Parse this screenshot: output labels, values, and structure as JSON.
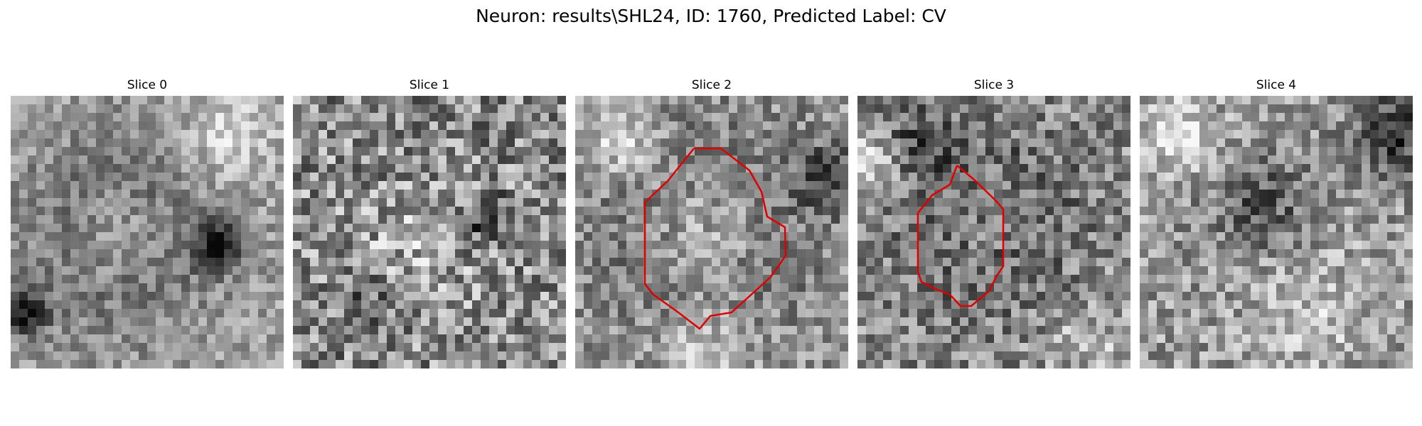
{
  "figure": {
    "title": "Neuron: results\\SHL24, ID: 1760, Predicted Label: CV"
  },
  "colors": {
    "contour": "#e00000",
    "background": "#ffffff"
  },
  "slices": [
    {
      "title": "Slice 0",
      "has_contour": false
    },
    {
      "title": "Slice 1",
      "has_contour": false
    },
    {
      "title": "Slice 2",
      "has_contour": true
    },
    {
      "title": "Slice 3",
      "has_contour": true
    },
    {
      "title": "Slice 4",
      "has_contour": false
    }
  ]
}
